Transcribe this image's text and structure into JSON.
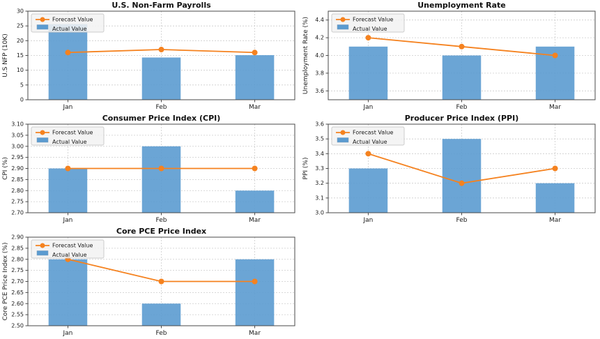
{
  "figure": {
    "background": "#ffffff",
    "months": [
      "Jan",
      "Feb",
      "Mar"
    ]
  },
  "colors": {
    "forecast_line": "#F5821F",
    "actual_bar": "#5B9BD0",
    "grid": "#CCCCCC",
    "spine": "#4A4A4A",
    "tick_label": "#1A1A1A",
    "title": "#111111",
    "legend_bg": "#F2F2F2",
    "legend_border": "#CCCCCC"
  },
  "legend": {
    "forecast_label": "Forecast Value",
    "actual_label": "Actual Value",
    "position": "upper-left"
  },
  "chart_data": [
    {
      "type": "bar+line",
      "title": "U.S. Non-Farm Payrolls",
      "ylabel": "U.S NFP (10K)",
      "xlabel": "",
      "categories": [
        "Jan",
        "Feb",
        "Mar"
      ],
      "series": [
        {
          "name": "Forecast Value",
          "type": "line",
          "values": [
            16,
            17,
            16
          ]
        },
        {
          "name": "Actual Value",
          "type": "bar",
          "values": [
            25.6,
            14.3,
            15.1
          ]
        }
      ],
      "ylim": [
        0,
        30
      ],
      "yticks": [
        "0",
        "5",
        "10",
        "15",
        "20",
        "25",
        "30"
      ],
      "grid": true,
      "legend_position": "upper-left"
    },
    {
      "type": "bar+line",
      "title": "Unemployment Rate",
      "ylabel": "Unemployment Rate (%)",
      "xlabel": "",
      "categories": [
        "Jan",
        "Feb",
        "Mar"
      ],
      "series": [
        {
          "name": "Forecast Value",
          "type": "line",
          "values": [
            4.2,
            4.1,
            4.0
          ]
        },
        {
          "name": "Actual Value",
          "type": "bar",
          "values": [
            4.1,
            4.0,
            4.1
          ]
        }
      ],
      "ylim": [
        3.5,
        4.5
      ],
      "yticks": [
        "3.6",
        "3.8",
        "4.0",
        "4.2",
        "4.4"
      ],
      "grid": true,
      "legend_position": "upper-left"
    },
    {
      "type": "bar+line",
      "title": "Consumer Price Index (CPI)",
      "ylabel": "CPI (%)",
      "xlabel": "",
      "categories": [
        "Jan",
        "Feb",
        "Mar"
      ],
      "series": [
        {
          "name": "Forecast Value",
          "type": "line",
          "values": [
            2.9,
            2.9,
            2.9
          ]
        },
        {
          "name": "Actual Value",
          "type": "bar",
          "values": [
            2.9,
            3.0,
            2.8
          ]
        }
      ],
      "ylim": [
        2.7,
        3.1
      ],
      "yticks": [
        "2.70",
        "2.75",
        "2.80",
        "2.85",
        "2.90",
        "2.95",
        "3.00",
        "3.05",
        "3.10"
      ],
      "grid": true,
      "legend_position": "upper-left"
    },
    {
      "type": "bar+line",
      "title": "Producer Price Index (PPI)",
      "ylabel": "PPI (%)",
      "xlabel": "",
      "categories": [
        "Jan",
        "Feb",
        "Mar"
      ],
      "series": [
        {
          "name": "Forecast Value",
          "type": "line",
          "values": [
            3.4,
            3.2,
            3.3
          ]
        },
        {
          "name": "Actual Value",
          "type": "bar",
          "values": [
            3.3,
            3.5,
            3.2
          ]
        }
      ],
      "ylim": [
        3.0,
        3.6
      ],
      "yticks": [
        "3.0",
        "3.1",
        "3.2",
        "3.3",
        "3.4",
        "3.5",
        "3.6"
      ],
      "grid": true,
      "legend_position": "upper-left"
    },
    {
      "type": "bar+line",
      "title": "Core PCE Price Index",
      "ylabel": "Core PCE Price Index (%)",
      "xlabel": "",
      "categories": [
        "Jan",
        "Feb",
        "Mar"
      ],
      "series": [
        {
          "name": "Forecast Value",
          "type": "line",
          "values": [
            2.8,
            2.7,
            2.7
          ]
        },
        {
          "name": "Actual Value",
          "type": "bar",
          "values": [
            2.8,
            2.6,
            2.8
          ]
        }
      ],
      "ylim": [
        2.5,
        2.9
      ],
      "yticks": [
        "2.50",
        "2.55",
        "2.60",
        "2.65",
        "2.70",
        "2.75",
        "2.80",
        "2.85",
        "2.90"
      ],
      "grid": true,
      "legend_position": "upper-left"
    }
  ]
}
